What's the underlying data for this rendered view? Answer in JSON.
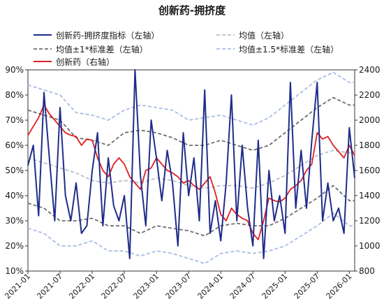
{
  "chart_data": {
    "type": "line",
    "title": "创新药-拥挤度",
    "left_axis": {
      "min": 10,
      "max": 90,
      "step": 10,
      "tick_labels": [
        "10%",
        "20%",
        "30%",
        "40%",
        "50%",
        "60%",
        "70%",
        "80%",
        "90%"
      ]
    },
    "right_axis": {
      "min": 800,
      "max": 2400,
      "step": 200,
      "tick_labels": [
        "800",
        "1000",
        "1200",
        "1400",
        "1600",
        "1800",
        "2000",
        "2200",
        "2400"
      ]
    },
    "x_axis": {
      "start": "2021-01",
      "end": "2026-02",
      "tick_labels": [
        "2021-01",
        "2021-07",
        "2022-01",
        "2022-07",
        "2023-01",
        "2023-07",
        "2024-01",
        "2024-07",
        "2025-01",
        "2025-07",
        "2026-01"
      ]
    },
    "legend_position": "top",
    "series": [
      {
        "name": "创新药-拥挤度指标（左轴）",
        "axis": "left",
        "color": "#1f2d8a",
        "style": "solid",
        "x": [
          "2021-01",
          "2021-02",
          "2021-03",
          "2021-04",
          "2021-05",
          "2021-06",
          "2021-07",
          "2021-08",
          "2021-09",
          "2021-10",
          "2021-11",
          "2021-12",
          "2022-01",
          "2022-02",
          "2022-03",
          "2022-04",
          "2022-05",
          "2022-06",
          "2022-07",
          "2022-08",
          "2022-09",
          "2022-10",
          "2022-11",
          "2022-12",
          "2023-01",
          "2023-02",
          "2023-03",
          "2023-04",
          "2023-05",
          "2023-06",
          "2023-07",
          "2023-08",
          "2023-09",
          "2023-10",
          "2023-11",
          "2023-12",
          "2024-01",
          "2024-02",
          "2024-03",
          "2024-04",
          "2024-05",
          "2024-06",
          "2024-07",
          "2024-08",
          "2024-09",
          "2024-10",
          "2024-11",
          "2024-12",
          "2025-01",
          "2025-02",
          "2025-03",
          "2025-04",
          "2025-05",
          "2025-06",
          "2025-07",
          "2025-08",
          "2025-09",
          "2025-10",
          "2025-11",
          "2025-12",
          "2026-01",
          "2026-02"
        ],
        "values": [
          52,
          60,
          32,
          81,
          55,
          30,
          75,
          40,
          30,
          45,
          25,
          28,
          50,
          65,
          28,
          55,
          36,
          30,
          40,
          15,
          90,
          48,
          28,
          70,
          55,
          38,
          58,
          45,
          20,
          65,
          40,
          55,
          30,
          82,
          25,
          38,
          22,
          45,
          80,
          30,
          60,
          35,
          20,
          62,
          15,
          50,
          30,
          40,
          25,
          85,
          35,
          58,
          35,
          62,
          85,
          30,
          45,
          30,
          35,
          25,
          67,
          47
        ]
      },
      {
        "name": "均值（左轴）",
        "axis": "left",
        "color": "#b8bcc8",
        "style": "dashed",
        "x": [
          "2021-01",
          "2021-04",
          "2021-07",
          "2021-10",
          "2022-01",
          "2022-04",
          "2022-07",
          "2022-10",
          "2023-01",
          "2023-04",
          "2023-07",
          "2023-10",
          "2024-01",
          "2024-04",
          "2024-07",
          "2024-10",
          "2025-01",
          "2025-04",
          "2025-07",
          "2025-10",
          "2026-01",
          "2026-02"
        ],
        "values": [
          55,
          53,
          51,
          49,
          46,
          45,
          46,
          45,
          47,
          46,
          44,
          43,
          44,
          44,
          43,
          45,
          48,
          52,
          56,
          58,
          57,
          57
        ]
      },
      {
        "name": "均值±1*标准差（左轴）",
        "axis": "left",
        "color": "#6e6e6e",
        "style": "dashed",
        "bands": [
          {
            "x": [
              "2021-01",
              "2021-04",
              "2021-07",
              "2021-10",
              "2022-01",
              "2022-04",
              "2022-07",
              "2022-10",
              "2023-01",
              "2023-04",
              "2023-07",
              "2023-10",
              "2024-01",
              "2024-04",
              "2024-07",
              "2024-10",
              "2025-01",
              "2025-04",
              "2025-07",
              "2025-10",
              "2026-01",
              "2026-02"
            ],
            "values": [
              74,
              72,
              70,
              63,
              62,
              60,
              65,
              66,
              65,
              63,
              60,
              60,
              62,
              60,
              58,
              60,
              65,
              70,
              75,
              79,
              76,
              76
            ]
          },
          {
            "x": [
              "2021-01",
              "2021-04",
              "2021-07",
              "2021-10",
              "2022-01",
              "2022-04",
              "2022-07",
              "2022-10",
              "2023-01",
              "2023-04",
              "2023-07",
              "2023-10",
              "2024-01",
              "2024-04",
              "2024-07",
              "2024-10",
              "2025-01",
              "2025-04",
              "2025-07",
              "2025-10",
              "2026-01",
              "2026-02"
            ],
            "values": [
              37,
              35,
              30,
              30,
              31,
              28,
              28,
              25,
              28,
              27,
              26,
              24,
              28,
              29,
              28,
              28,
              31,
              35,
              39,
              44,
              38,
              38
            ]
          }
        ]
      },
      {
        "name": "均值±1.5*标准差（左轴）",
        "axis": "left",
        "color": "#a9bde3",
        "style": "dashed",
        "bands": [
          {
            "x": [
              "2021-01",
              "2021-04",
              "2021-07",
              "2021-10",
              "2022-01",
              "2022-04",
              "2022-07",
              "2022-10",
              "2023-01",
              "2023-04",
              "2023-07",
              "2023-10",
              "2024-01",
              "2024-04",
              "2024-07",
              "2024-10",
              "2025-01",
              "2025-04",
              "2025-07",
              "2025-10",
              "2026-01",
              "2026-02"
            ],
            "values": [
              84,
              82,
              80,
              73,
              72,
              70,
              74,
              76,
              75,
              74,
              70,
              71,
              72,
              70,
              68,
              71,
              76,
              81,
              86,
              89,
              85,
              85
            ]
          },
          {
            "x": [
              "2021-01",
              "2021-04",
              "2021-07",
              "2021-10",
              "2022-01",
              "2022-04",
              "2022-07",
              "2022-10",
              "2023-01",
              "2023-04",
              "2023-07",
              "2023-10",
              "2024-01",
              "2024-04",
              "2024-07",
              "2024-10",
              "2025-01",
              "2025-04",
              "2025-07",
              "2025-10",
              "2026-01",
              "2026-02"
            ],
            "values": [
              27,
              25,
              20,
              20,
              22,
              18,
              18,
              16,
              18,
              17,
              15,
              13,
              17,
              18,
              17,
              18,
              20,
              24,
              28,
              33,
              28,
              28
            ]
          }
        ]
      },
      {
        "name": "创新药（右轴）",
        "axis": "right",
        "color": "#e02020",
        "style": "solid",
        "x": [
          "2021-01",
          "2021-02",
          "2021-03",
          "2021-04",
          "2021-05",
          "2021-06",
          "2021-07",
          "2021-08",
          "2021-09",
          "2021-10",
          "2021-11",
          "2021-12",
          "2022-01",
          "2022-02",
          "2022-03",
          "2022-04",
          "2022-05",
          "2022-06",
          "2022-07",
          "2022-08",
          "2022-09",
          "2022-10",
          "2022-11",
          "2022-12",
          "2023-01",
          "2023-02",
          "2023-03",
          "2023-04",
          "2023-05",
          "2023-06",
          "2023-07",
          "2023-08",
          "2023-09",
          "2023-10",
          "2023-11",
          "2023-12",
          "2024-01",
          "2024-02",
          "2024-03",
          "2024-04",
          "2024-05",
          "2024-06",
          "2024-07",
          "2024-08",
          "2024-09",
          "2024-10",
          "2024-11",
          "2024-12",
          "2025-01",
          "2025-02",
          "2025-03",
          "2025-04",
          "2025-05",
          "2025-06",
          "2025-07",
          "2025-08",
          "2025-09",
          "2025-10",
          "2025-11",
          "2025-12",
          "2026-01",
          "2026-02"
        ],
        "values": [
          1880,
          1950,
          2020,
          2120,
          2050,
          2000,
          1950,
          1900,
          1880,
          1870,
          1800,
          1850,
          1840,
          1700,
          1600,
          1550,
          1650,
          1700,
          1650,
          1550,
          1500,
          1450,
          1600,
          1620,
          1700,
          1650,
          1600,
          1580,
          1550,
          1500,
          1520,
          1480,
          1450,
          1500,
          1550,
          1420,
          1250,
          1200,
          1300,
          1250,
          1220,
          1200,
          1100,
          1050,
          1200,
          1380,
          1360,
          1350,
          1380,
          1450,
          1480,
          1520,
          1600,
          1650,
          1900,
          1850,
          1870,
          1800,
          1750,
          1700,
          1800,
          1720
        ]
      }
    ]
  }
}
